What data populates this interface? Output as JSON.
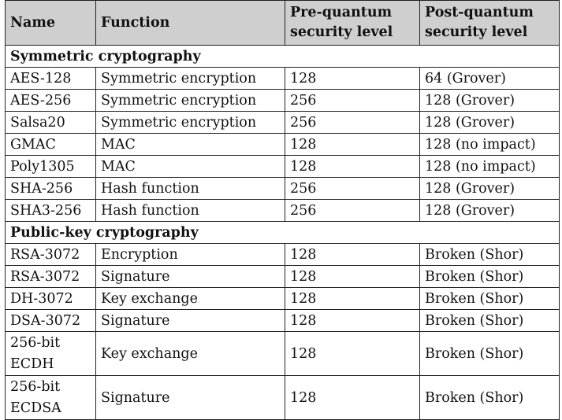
{
  "header": {
    "col_name": "Name",
    "col_function": "Function",
    "col_pre": "Pre-quantum security level",
    "col_post": "Post-quantum security level"
  },
  "sections": [
    {
      "title": "Symmetric cryptography",
      "rows": [
        {
          "name": "AES-128",
          "function": "Symmetric encryption",
          "pre": "128",
          "post": "64 (Grover)"
        },
        {
          "name": "AES-256",
          "function": "Symmetric encryption",
          "pre": "256",
          "post": "128 (Grover)"
        },
        {
          "name": "Salsa20",
          "function": "Symmetric encryption",
          "pre": "256",
          "post": "128 (Grover)"
        },
        {
          "name": "GMAC",
          "function": "MAC",
          "pre": "128",
          "post": "128 (no impact)"
        },
        {
          "name": "Poly1305",
          "function": "MAC",
          "pre": "128",
          "post": "128 (no impact)"
        },
        {
          "name": "SHA-256",
          "function": "Hash function",
          "pre": "256",
          "post": "128 (Grover)"
        },
        {
          "name": "SHA3-256",
          "function": "Hash function",
          "pre": "256",
          "post": "128 (Grover)"
        }
      ]
    },
    {
      "title": "Public-key cryptography",
      "rows": [
        {
          "name": "RSA-3072",
          "function": "Encryption",
          "pre": "128",
          "post": "Broken (Shor)"
        },
        {
          "name": "RSA-3072",
          "function": "Signature",
          "pre": "128",
          "post": "Broken (Shor)"
        },
        {
          "name": "DH-3072",
          "function": "Key exchange",
          "pre": "128",
          "post": "Broken (Shor)"
        },
        {
          "name": "DSA-3072",
          "function": "Signature",
          "pre": "128",
          "post": "Broken (Shor)"
        },
        {
          "name": "256-bit ECDH",
          "function": "Key exchange",
          "pre": "128",
          "post": "Broken (Shor)"
        },
        {
          "name": "256-bit ECDSA",
          "function": "Signature",
          "pre": "128",
          "post": "Broken (Shor)"
        }
      ]
    }
  ]
}
